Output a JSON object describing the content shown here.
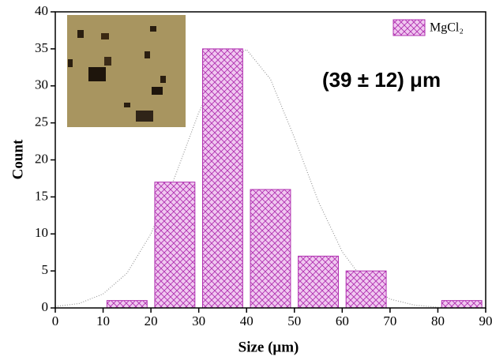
{
  "chart_data": {
    "type": "histogram",
    "bins": [
      10,
      20,
      30,
      40,
      50,
      60,
      70,
      80,
      90
    ],
    "values": [
      1,
      17,
      35,
      16,
      7,
      5,
      0,
      1
    ],
    "series_name": "MgCl₂",
    "color": "#b030b0",
    "xlabel": "Size (μm)",
    "ylabel": "Count",
    "annotation": "(39 ± 12) μm",
    "xlim": [
      0,
      90
    ],
    "xticks": [
      0,
      10,
      20,
      30,
      40,
      50,
      60,
      70,
      80,
      90
    ],
    "ylim": [
      0,
      40
    ],
    "yticks": [
      0,
      5,
      10,
      15,
      20,
      25,
      30,
      35,
      40
    ],
    "fit_curve": {
      "x": [
        0,
        5,
        10,
        15,
        20,
        25,
        30,
        35,
        40,
        45,
        50,
        55,
        60,
        65,
        70,
        75,
        80,
        85,
        90
      ],
      "y": [
        0.2,
        0.6,
        1.9,
        4.7,
        10.0,
        17.7,
        26.4,
        33.1,
        34.9,
        30.9,
        23.0,
        14.4,
        7.6,
        3.3,
        1.2,
        0.4,
        0.1,
        0,
        0
      ]
    }
  }
}
